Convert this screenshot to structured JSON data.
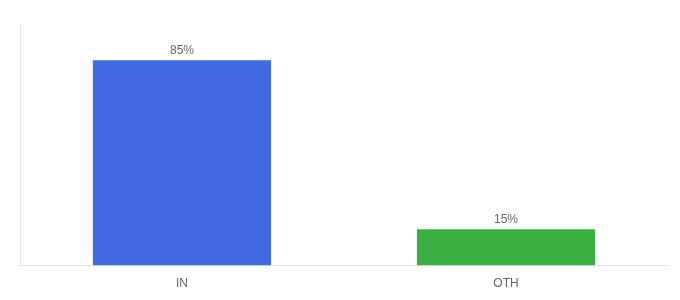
{
  "chart_data": {
    "type": "bar",
    "categories": [
      "IN",
      "OTH"
    ],
    "values": [
      85,
      15
    ],
    "colors": [
      "#4169E1",
      "#3CB043"
    ],
    "ylim": [
      0,
      100
    ],
    "grid": false,
    "data_labels": true,
    "value_labels": [
      "85%",
      "15%"
    ],
    "tick_labels": "x"
  }
}
